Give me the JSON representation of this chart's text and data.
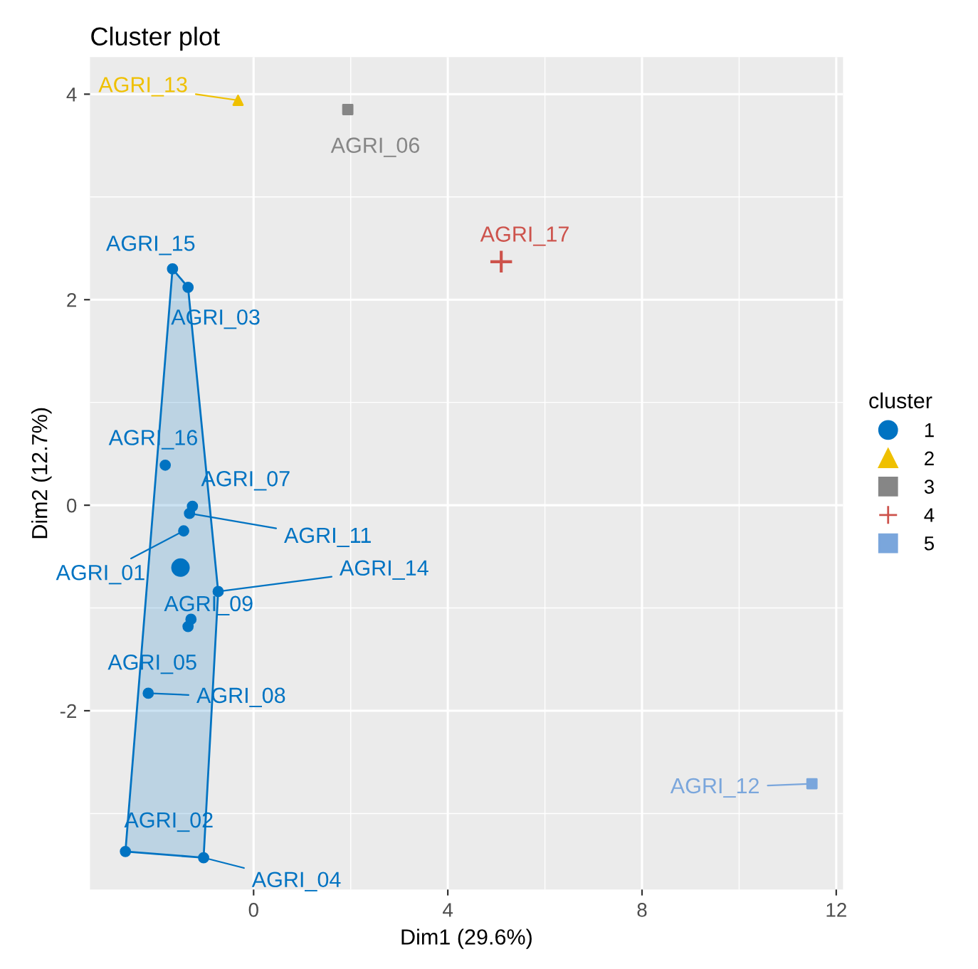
{
  "chart_data": {
    "type": "scatter",
    "title": "Cluster plot",
    "xlabel": "Dim1 (29.6%)",
    "ylabel": "Dim2 (12.7%)",
    "legend_title": "cluster",
    "legend": "right",
    "grid": true,
    "xlim": [
      -3.37,
      12.14
    ],
    "ylim": [
      -3.74,
      4.36
    ],
    "xticks": [
      0,
      4,
      8,
      12
    ],
    "yticks": [
      -2,
      0,
      2,
      4
    ],
    "series": [
      {
        "name": "1",
        "color": "#0073C2",
        "marker": "circle",
        "x": [
          -1.67,
          -1.35,
          -1.82,
          -1.26,
          -1.32,
          -1.44,
          -0.73,
          -1.29,
          -1.35,
          -2.17,
          -2.64,
          -1.03
        ],
        "values": [
          2.3,
          2.12,
          0.39,
          -0.01,
          -0.08,
          -0.25,
          -0.84,
          -1.11,
          -1.18,
          -1.83,
          -3.37,
          -3.43
        ]
      },
      {
        "name": "2",
        "color": "#EFC000",
        "marker": "triangle",
        "x": [
          -0.32
        ],
        "values": [
          3.94
        ]
      },
      {
        "name": "3",
        "color": "#868686",
        "marker": "square",
        "x": [
          1.94
        ],
        "values": [
          3.85
        ]
      },
      {
        "name": "4",
        "color": "#CD534C",
        "marker": "cross",
        "x": [
          5.1
        ],
        "values": [
          2.37
        ]
      },
      {
        "name": "5",
        "color": "#7AA6DC",
        "marker": "square",
        "x": [
          11.5
        ],
        "values": [
          -2.71
        ]
      }
    ],
    "annotations": [
      {
        "text": "AGRI_13",
        "x": -0.32,
        "y": 3.94
      },
      {
        "text": "AGRI_06",
        "x": 1.94,
        "y": 3.85
      },
      {
        "text": "AGRI_17",
        "x": 5.1,
        "y": 2.37
      },
      {
        "text": "AGRI_12",
        "x": 11.5,
        "y": -2.71
      },
      {
        "text": "AGRI_15",
        "x": -1.67,
        "y": 2.3
      },
      {
        "text": "AGRI_03",
        "x": -1.35,
        "y": 2.12
      },
      {
        "text": "AGRI_16",
        "x": -1.82,
        "y": 0.39
      },
      {
        "text": "AGRI_07",
        "x": -1.26,
        "y": -0.01
      },
      {
        "text": "AGRI_11",
        "x": -1.32,
        "y": -0.08
      },
      {
        "text": "AGRI_01",
        "x": -1.44,
        "y": -0.25
      },
      {
        "text": "AGRI_14",
        "x": -0.73,
        "y": -0.84
      },
      {
        "text": "AGRI_09",
        "x": -1.29,
        "y": -1.11
      },
      {
        "text": "AGRI_05",
        "x": -1.35,
        "y": -1.18
      },
      {
        "text": "AGRI_08",
        "x": -2.17,
        "y": -1.83
      },
      {
        "text": "AGRI_02",
        "x": -2.64,
        "y": -3.37
      },
      {
        "text": "AGRI_04",
        "x": -1.03,
        "y": -3.43
      }
    ]
  }
}
